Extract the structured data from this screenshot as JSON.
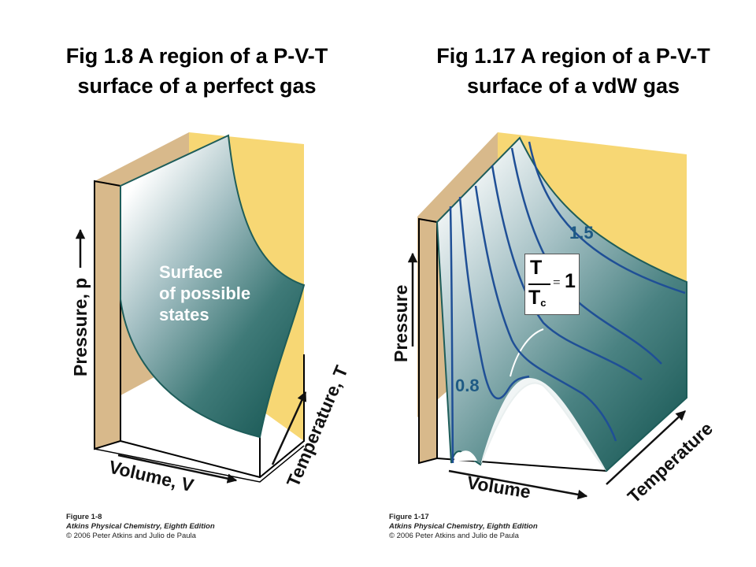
{
  "left_figure": {
    "title_line1": "Fig 1.8  A region of a P-V-T",
    "title_line2": "surface of a perfect gas",
    "surface_label_line1": "Surface",
    "surface_label_line2": "of possible",
    "surface_label_line3": "states",
    "axis_pressure": "Pressure, p",
    "axis_volume": "Volume, V",
    "axis_temperature": "Temperature, T",
    "caption_figure": "Figure 1-8",
    "caption_book": "Atkins Physical Chemistry, Eighth Edition",
    "caption_copyright": "© 2006 Peter Atkins and Julio de Paula"
  },
  "right_figure": {
    "title_line1": "Fig 1.17  A region of a P-V-T",
    "title_line2": "surface of a vdW gas",
    "isotherm_high": "1.5",
    "isotherm_low": "0.8",
    "ratio_numerator": "T",
    "ratio_denominator": "T",
    "ratio_subscript": "c",
    "ratio_equals": "=",
    "ratio_value": "1",
    "axis_pressure": "Pressure",
    "axis_volume": "Volume",
    "axis_temperature": "Temperature",
    "caption_figure": "Figure 1-17",
    "caption_book": "Atkins Physical Chemistry, Eighth Edition",
    "caption_copyright": "© 2006 Peter Atkins and Julio de Paula"
  },
  "colors": {
    "back_wall": "#f7d774",
    "side_wall": "#d8b98b",
    "surface_dark": "#1e5d5a",
    "surface_light": "#ffffff",
    "isotherm": "#1f4f96",
    "label_teal": "#1e5a84"
  }
}
